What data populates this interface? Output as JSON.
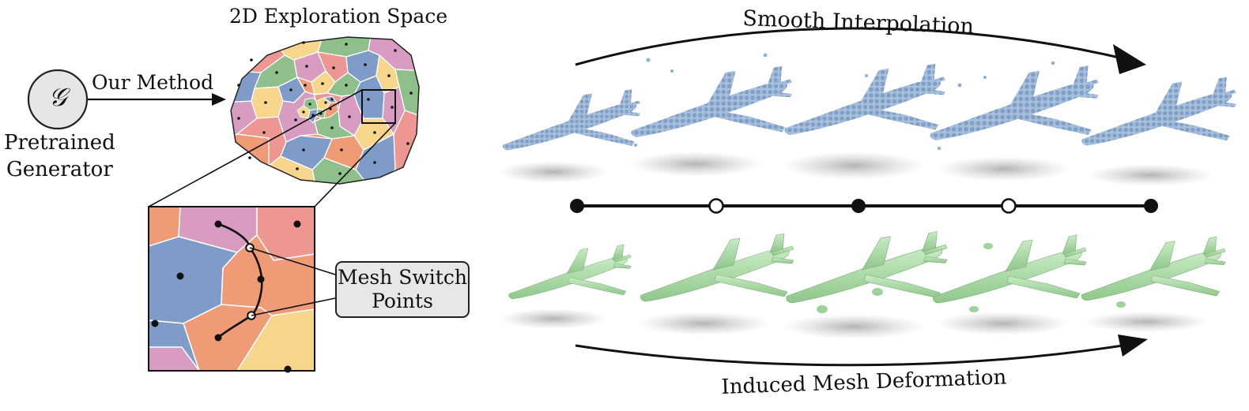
{
  "generator": {
    "symbol": "𝒢",
    "label_line1": "Pretrained",
    "label_line2": "Generator"
  },
  "method_label": "Our Method",
  "exploration_title": "2D Exploration Space",
  "switch_points": {
    "line1": "Mesh Switch",
    "line2": "Points"
  },
  "top_arrow_label": "Smooth Interpolation",
  "bottom_arrow_label": "Induced Mesh Deformation",
  "colors": {
    "pink": "#d79cbf",
    "blue": "#7f9cc9",
    "orange": "#ef9b76",
    "yellow": "#f7d68c",
    "green": "#8fbf8a",
    "salmon": "#ee9692",
    "pointcloud": "#8eaed3",
    "mesh": "#a9d8a5"
  }
}
